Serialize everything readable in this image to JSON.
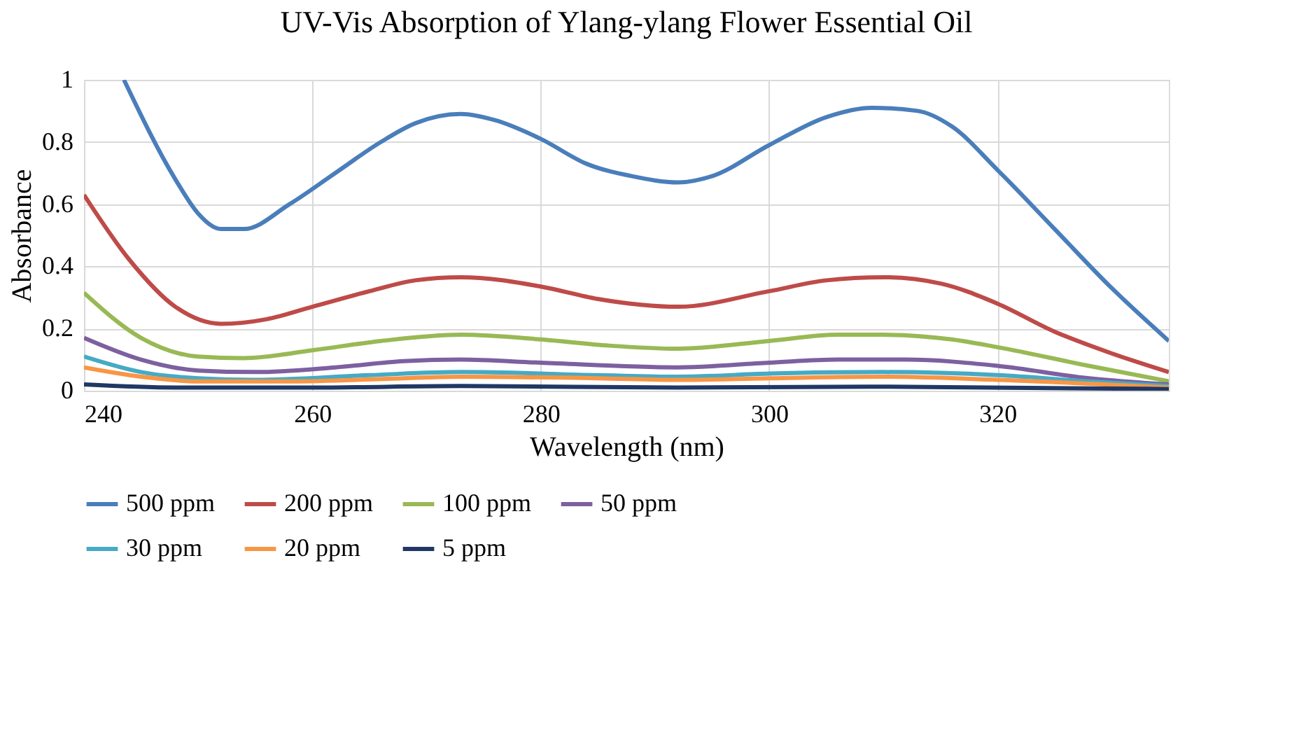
{
  "chart_data": {
    "type": "line",
    "title": "UV-Vis Absorption of Ylang-ylang Flower Essential Oil",
    "xlabel": "Wavelength (nm)",
    "ylabel": "Absorbance",
    "xlim": [
      240,
      335
    ],
    "xticks": [
      240,
      260,
      280,
      300,
      320
    ],
    "ylim": [
      0,
      1
    ],
    "yticks": [
      0,
      0.2,
      0.4,
      0.6,
      0.8,
      1
    ],
    "grid": true,
    "legend": "bottom",
    "marker": "none",
    "line_style": "solid",
    "series": [
      {
        "name": "500 ppm",
        "color": "#4a7ebb",
        "x": [
          243.5,
          248,
          250,
          252,
          254,
          258,
          262,
          266,
          269,
          273,
          276,
          280,
          284,
          288,
          292,
          295,
          300,
          305,
          309,
          313,
          316,
          320,
          325,
          330,
          335
        ],
        "values": [
          1.0,
          0.68,
          0.57,
          0.52,
          0.52,
          0.6,
          0.7,
          0.8,
          0.86,
          0.89,
          0.87,
          0.81,
          0.73,
          0.69,
          0.67,
          0.69,
          0.79,
          0.88,
          0.91,
          0.9,
          0.85,
          0.71,
          0.52,
          0.33,
          0.16
        ]
      },
      {
        "name": "200 ppm",
        "color": "#be4b48",
        "x": [
          240,
          244,
          248,
          252,
          256,
          260,
          265,
          269,
          273,
          280,
          285,
          292,
          300,
          305,
          310,
          315,
          320,
          325,
          330,
          335
        ],
        "values": [
          0.63,
          0.42,
          0.27,
          0.215,
          0.23,
          0.27,
          0.32,
          0.355,
          0.365,
          0.335,
          0.295,
          0.27,
          0.32,
          0.355,
          0.365,
          0.345,
          0.28,
          0.19,
          0.12,
          0.06
        ]
      },
      {
        "name": "100 ppm",
        "color": "#98b954",
        "x": [
          240,
          245,
          250,
          254,
          260,
          266,
          273,
          280,
          286,
          292,
          300,
          306,
          310,
          316,
          320,
          328,
          335
        ],
        "values": [
          0.315,
          0.17,
          0.11,
          0.105,
          0.13,
          0.16,
          0.18,
          0.165,
          0.145,
          0.135,
          0.16,
          0.18,
          0.18,
          0.165,
          0.14,
          0.08,
          0.03
        ]
      },
      {
        "name": "50 ppm",
        "color": "#7d60a0",
        "x": [
          240,
          245,
          250,
          255,
          262,
          268,
          273,
          280,
          292,
          300,
          306,
          312,
          320,
          328,
          335
        ],
        "values": [
          0.17,
          0.1,
          0.065,
          0.06,
          0.075,
          0.095,
          0.1,
          0.09,
          0.075,
          0.09,
          0.1,
          0.1,
          0.08,
          0.04,
          0.02
        ]
      },
      {
        "name": "30 ppm",
        "color": "#46aac5",
        "x": [
          240,
          245,
          250,
          255,
          265,
          273,
          285,
          292,
          300,
          310,
          320,
          328,
          335
        ],
        "values": [
          0.11,
          0.06,
          0.04,
          0.035,
          0.05,
          0.06,
          0.05,
          0.045,
          0.055,
          0.06,
          0.05,
          0.03,
          0.015
        ]
      },
      {
        "name": "20 ppm",
        "color": "#f79646",
        "x": [
          240,
          245,
          250,
          258,
          268,
          273,
          285,
          292,
          300,
          310,
          320,
          335
        ],
        "values": [
          0.075,
          0.045,
          0.03,
          0.03,
          0.04,
          0.045,
          0.04,
          0.035,
          0.04,
          0.045,
          0.035,
          0.01
        ]
      },
      {
        "name": "5 ppm",
        "color": "#203864",
        "x": [
          240,
          248,
          260,
          273,
          292,
          310,
          335
        ],
        "values": [
          0.02,
          0.01,
          0.01,
          0.015,
          0.01,
          0.013,
          0.005
        ]
      }
    ]
  }
}
